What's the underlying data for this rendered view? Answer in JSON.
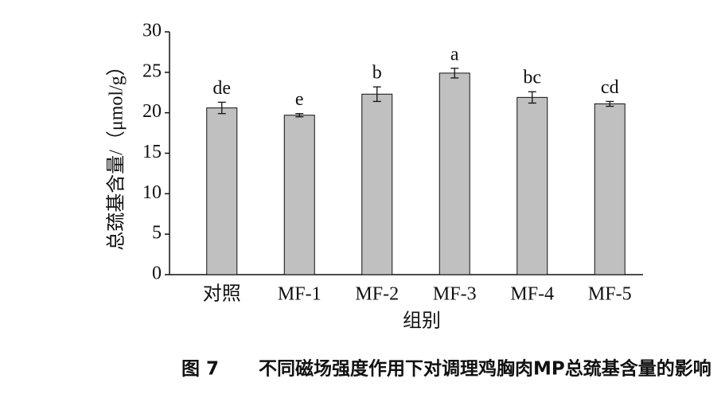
{
  "chart_data": {
    "type": "bar",
    "categories": [
      "对照",
      "MF-1",
      "MF-2",
      "MF-3",
      "MF-4",
      "MF-5"
    ],
    "values": [
      20.6,
      19.7,
      22.3,
      24.9,
      21.9,
      21.1
    ],
    "errors": [
      0.7,
      0.2,
      0.9,
      0.6,
      0.7,
      0.3
    ],
    "letters": [
      "de",
      "e",
      "b",
      "a",
      "bc",
      "cd"
    ],
    "color": "#c0c0c0",
    "ylim": [
      0,
      30
    ],
    "yticks": [
      0,
      5,
      10,
      15,
      20,
      25,
      30
    ],
    "y_label": "总巯基含量/（μmol/g）",
    "x_label": "组别",
    "figure_number": "图 7",
    "caption": "不同磁场强度作用下对调理鸡胸肉MP总巯基含量的影响"
  }
}
